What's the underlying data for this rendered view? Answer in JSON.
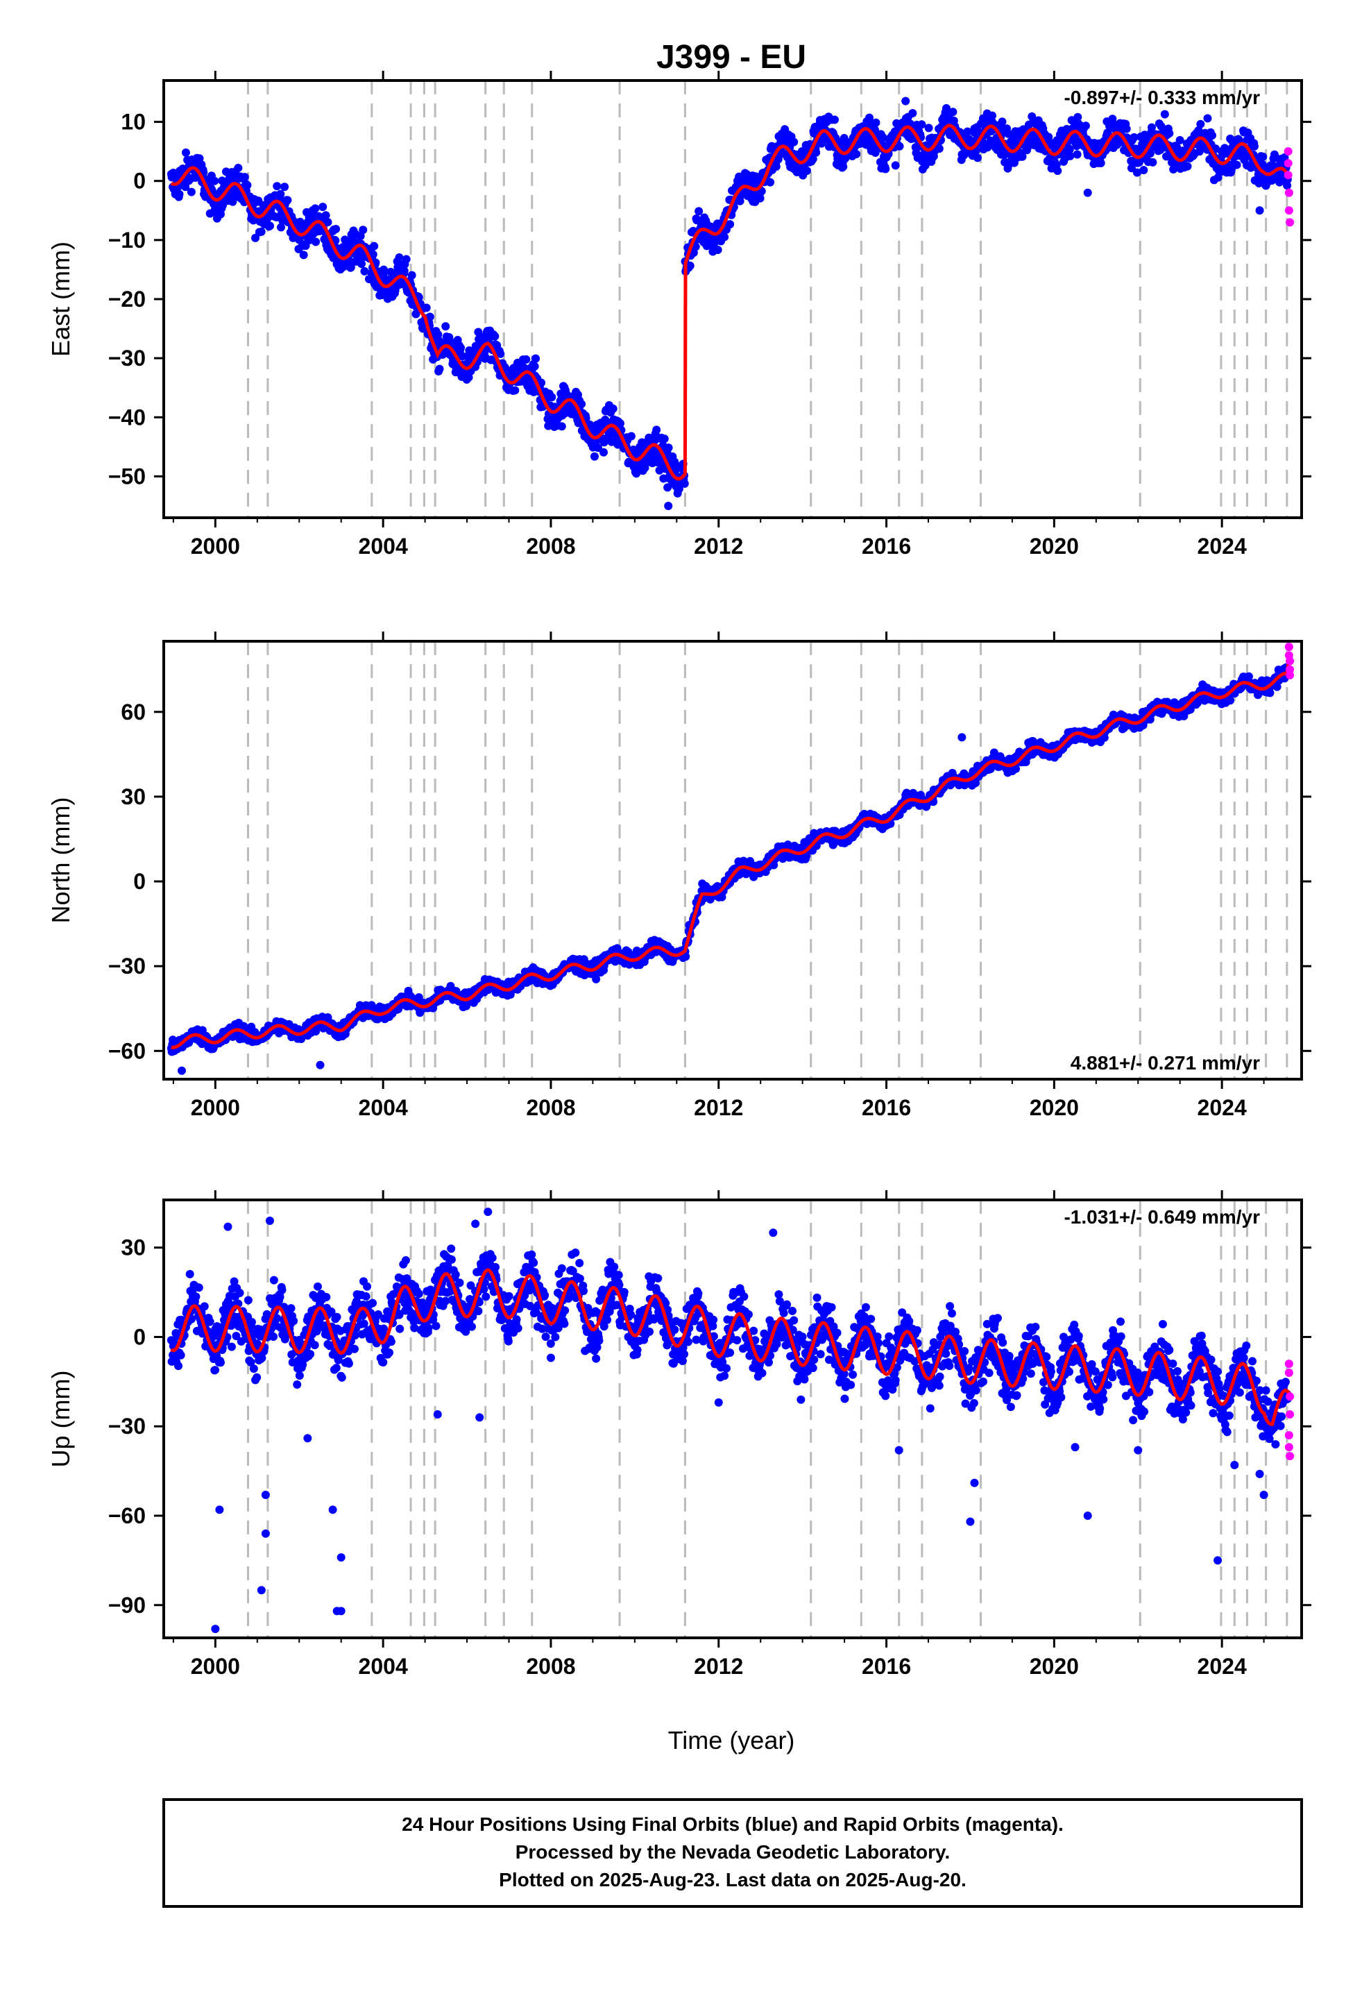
{
  "chart_data": {
    "title": "J399 - EU",
    "type": "scatter",
    "xlabel": "Time (year)",
    "xlim": [
      1998.77,
      2025.9
    ],
    "xticks": [
      2000,
      2004,
      2008,
      2012,
      2016,
      2020,
      2024
    ],
    "xtick_labels": [
      "2000",
      "2004",
      "2008",
      "2012",
      "2016",
      "2020",
      "2024"
    ],
    "event_lines": [
      2000.78,
      2001.25,
      2003.73,
      2004.66,
      2004.98,
      2005.24,
      2006.44,
      2006.88,
      2007.55,
      2009.64,
      2011.2,
      2014.2,
      2015.4,
      2016.3,
      2016.85,
      2018.25,
      2022.05,
      2023.98,
      2024.3,
      2024.6,
      2025.05,
      2025.55
    ],
    "series_legend": {
      "final_orbits": "blue",
      "rapid_orbits": "magenta",
      "model": "red"
    },
    "colors": {
      "final": "#0000ff",
      "rapid": "#ff00ff",
      "model": "#ff0000",
      "event": "#bbbbbb"
    },
    "panels": [
      {
        "ylabel": "East (mm)",
        "ylim": [
          -57,
          17
        ],
        "yticks": [
          10,
          0,
          -10,
          -20,
          -30,
          -40,
          -50
        ],
        "ytick_labels": [
          "10",
          "0",
          "−10",
          "−20",
          "−30",
          "−40",
          "−50"
        ],
        "rate_label": "-0.897+/- 0.333 mm/yr",
        "rate_position": "top-right",
        "trend_points": [
          [
            1999.0,
            1.5
          ],
          [
            2000.5,
            -2.5
          ],
          [
            2002.0,
            -7.0
          ],
          [
            2003.5,
            -13.0
          ],
          [
            2005.0,
            -21.0
          ],
          [
            2005.3,
            -30.0
          ],
          [
            2006.5,
            -29.5
          ],
          [
            2008.0,
            -37.0
          ],
          [
            2009.5,
            -43.5
          ],
          [
            2011.2,
            -49.0
          ],
          [
            2011.2,
            -13.5
          ],
          [
            2011.8,
            -8.0
          ],
          [
            2012.5,
            -3.5
          ],
          [
            2013.2,
            3.0
          ],
          [
            2014.5,
            6.5
          ],
          [
            2016.0,
            7.0
          ],
          [
            2018.0,
            7.5
          ],
          [
            2020.0,
            6.5
          ],
          [
            2022.0,
            6.0
          ],
          [
            2024.0,
            5.0
          ],
          [
            2025.0,
            3.5
          ],
          [
            2025.6,
            -1.0
          ]
        ],
        "seasonal_amplitude": 2.0,
        "scatter_noise": 2.2,
        "outliers": [
          [
            2010.8,
            -55.0
          ],
          [
            2020.8,
            -2.0
          ],
          [
            2024.9,
            -5.0
          ]
        ],
        "rapid_points": [
          [
            2025.58,
            5.0
          ],
          [
            2025.58,
            3.0
          ],
          [
            2025.58,
            1.0
          ],
          [
            2025.6,
            -2.0
          ],
          [
            2025.6,
            -5.0
          ],
          [
            2025.62,
            -7.0
          ]
        ]
      },
      {
        "ylabel": "North (mm)",
        "ylim": [
          -70,
          85
        ],
        "yticks": [
          60,
          30,
          0,
          -30,
          -60
        ],
        "ytick_labels": [
          "60",
          "30",
          "0",
          "−30",
          "−60"
        ],
        "rate_label": "4.881+/- 0.271 mm/yr",
        "rate_position": "bottom-right",
        "trend_points": [
          [
            1999.0,
            -57.0
          ],
          [
            2001.0,
            -53.5
          ],
          [
            2003.0,
            -51.0
          ],
          [
            2004.0,
            -45.0
          ],
          [
            2006.0,
            -40.0
          ],
          [
            2008.0,
            -33.0
          ],
          [
            2010.0,
            -26.0
          ],
          [
            2011.2,
            -24.0
          ],
          [
            2011.6,
            -6.0
          ],
          [
            2012.5,
            3.0
          ],
          [
            2014.0,
            12.0
          ],
          [
            2016.0,
            23.0
          ],
          [
            2018.0,
            38.0
          ],
          [
            2020.0,
            48.0
          ],
          [
            2022.0,
            58.0
          ],
          [
            2024.0,
            67.0
          ],
          [
            2025.0,
            70.0
          ],
          [
            2025.55,
            72.0
          ],
          [
            2025.62,
            79.0
          ]
        ],
        "seasonal_amplitude": 1.8,
        "scatter_noise": 1.8,
        "outliers": [
          [
            1999.2,
            -67.0
          ],
          [
            2002.5,
            -65.0
          ],
          [
            2017.8,
            51.0
          ]
        ],
        "rapid_points": [
          [
            2025.6,
            83.0
          ],
          [
            2025.6,
            80.0
          ],
          [
            2025.62,
            78.0
          ],
          [
            2025.62,
            75.0
          ],
          [
            2025.62,
            73.0
          ]
        ]
      },
      {
        "ylabel": "Up (mm)",
        "ylim": [
          -101,
          46
        ],
        "yticks": [
          30,
          0,
          -30,
          -60,
          -90
        ],
        "ytick_labels": [
          "30",
          "0",
          "−30",
          "−60",
          "−90"
        ],
        "rate_label": "-1.031+/- 0.649 mm/yr",
        "rate_position": "top-right",
        "trend_points": [
          [
            1999.0,
            3.0
          ],
          [
            2003.5,
            2.0
          ],
          [
            2005.0,
            13.0
          ],
          [
            2006.5,
            15.0
          ],
          [
            2008.0,
            12.0
          ],
          [
            2010.0,
            8.0
          ],
          [
            2012.0,
            1.0
          ],
          [
            2014.0,
            -2.0
          ],
          [
            2016.0,
            -5.0
          ],
          [
            2018.0,
            -8.0
          ],
          [
            2020.0,
            -10.0
          ],
          [
            2022.0,
            -12.0
          ],
          [
            2024.0,
            -15.0
          ],
          [
            2025.0,
            -18.0
          ],
          [
            2025.2,
            -27.0
          ],
          [
            2025.6,
            -25.0
          ]
        ],
        "seasonal_amplitude": 7.5,
        "scatter_noise": 6.5,
        "outliers": [
          [
            2000.0,
            -98.0
          ],
          [
            2002.9,
            -92.0
          ],
          [
            2003.0,
            -92.0
          ],
          [
            2001.1,
            -85.0
          ],
          [
            2003.0,
            -74.0
          ],
          [
            2001.2,
            -66.0
          ],
          [
            2002.8,
            -58.0
          ],
          [
            2000.1,
            -58.0
          ],
          [
            2001.2,
            -53.0
          ],
          [
            2023.9,
            -75.0
          ],
          [
            2018.0,
            -62.0
          ],
          [
            2020.8,
            -60.0
          ],
          [
            2018.1,
            -49.0
          ],
          [
            2016.3,
            -38.0
          ],
          [
            2020.5,
            -37.0
          ],
          [
            2002.2,
            -34.0
          ],
          [
            2005.3,
            -26.0
          ],
          [
            2006.3,
            -27.0
          ],
          [
            2012.0,
            -22.0
          ],
          [
            2000.3,
            37.0
          ],
          [
            2001.3,
            39.0
          ],
          [
            2006.5,
            42.0
          ],
          [
            2006.2,
            38.0
          ],
          [
            2013.3,
            35.0
          ],
          [
            2024.3,
            -43.0
          ],
          [
            2025.0,
            -53.0
          ],
          [
            2024.9,
            -46.0
          ],
          [
            2022.0,
            -38.0
          ],
          [
            2008.0,
            -7.0
          ]
        ],
        "rapid_points": [
          [
            2025.6,
            -9.0
          ],
          [
            2025.6,
            -12.0
          ],
          [
            2025.62,
            -20.0
          ],
          [
            2025.62,
            -26.0
          ],
          [
            2025.6,
            -33.0
          ],
          [
            2025.6,
            -37.0
          ],
          [
            2025.62,
            -40.0
          ]
        ]
      }
    ]
  },
  "footer": {
    "line1": "24 Hour Positions Using Final Orbits (blue) and Rapid Orbits (magenta).",
    "line2": "Processed by the Nevada Geodetic Laboratory.",
    "line3": "Plotted on 2025-Aug-23. Last data on 2025-Aug-20."
  }
}
